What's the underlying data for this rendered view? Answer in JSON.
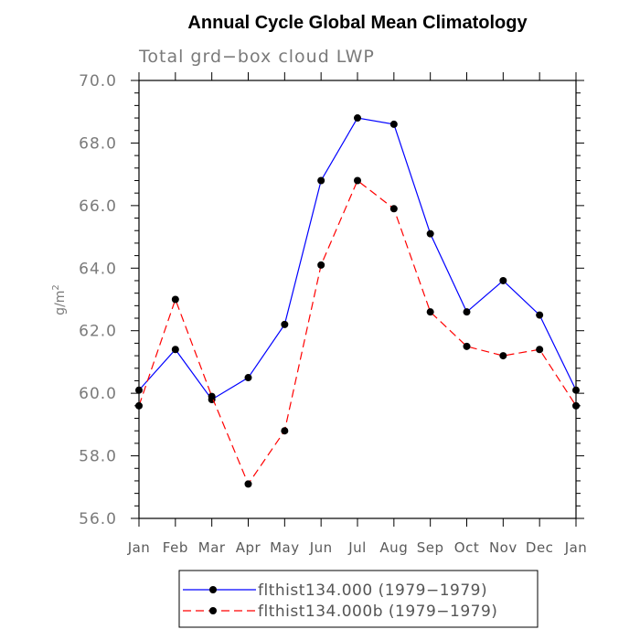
{
  "chart_data": {
    "type": "line",
    "title": "Annual Cycle Global Mean Climatology",
    "subtitle": "Total grd−box cloud LWP",
    "ylabel": "g/m",
    "ylabel_superscript": "2",
    "xlabel": "",
    "categories": [
      "Jan",
      "Feb",
      "Mar",
      "Apr",
      "May",
      "Jun",
      "Jul",
      "Aug",
      "Sep",
      "Oct",
      "Nov",
      "Dec",
      "Jan"
    ],
    "ylim": [
      56.0,
      70.0
    ],
    "yticks": [
      "56.0",
      "58.0",
      "60.0",
      "62.0",
      "64.0",
      "66.0",
      "68.0",
      "70.0"
    ],
    "series": [
      {
        "name": "flthist134.000 (1979−1979)",
        "color": "#0000ff",
        "dash": "solid",
        "values": [
          60.1,
          61.4,
          59.8,
          60.5,
          62.2,
          66.8,
          68.8,
          68.6,
          65.1,
          62.6,
          63.6,
          62.5,
          60.1
        ]
      },
      {
        "name": "flthist134.000b (1979−1979)",
        "color": "#ff0000",
        "dash": "dashed",
        "values": [
          59.6,
          63.0,
          59.9,
          57.1,
          58.8,
          64.1,
          66.8,
          65.9,
          62.6,
          61.5,
          61.2,
          61.4,
          59.6
        ]
      }
    ],
    "legend_position": "bottom-center",
    "grid": false
  }
}
